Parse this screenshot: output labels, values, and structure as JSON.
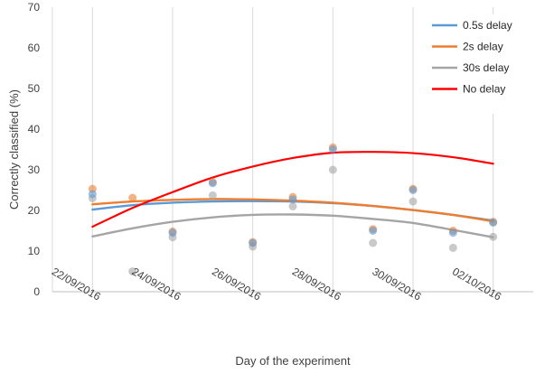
{
  "chart_data": {
    "type": "scatter",
    "xlabel": "Day of the experiment",
    "ylabel": "Correctly classified (%)",
    "ylim": [
      0,
      70
    ],
    "yticks": [
      0,
      10,
      20,
      30,
      40,
      50,
      60,
      70
    ],
    "xlim": [
      "21/09/2016",
      "03/10/2016"
    ],
    "xticks": [
      "22/09/2016",
      "24/09/2016",
      "26/09/2016",
      "28/09/2016",
      "30/09/2016",
      "02/10/2016"
    ],
    "grid": "vertical",
    "legend_position": "top-right",
    "x": [
      "22/09/2016",
      "23/09/2016",
      "24/09/2016",
      "25/09/2016",
      "26/09/2016",
      "27/09/2016",
      "28/09/2016",
      "29/09/2016",
      "30/09/2016",
      "01/10/2016",
      "02/10/2016"
    ],
    "series": [
      {
        "name": "0.5s delay",
        "color": "#5B9BD5",
        "values": [
          24.0,
          null,
          14.5,
          26.7,
          12.0,
          22.7,
          35.0,
          15.0,
          25.0,
          14.5,
          17.0
        ]
      },
      {
        "name": "2s delay",
        "color": "#ED7D31",
        "values": [
          25.3,
          23.1,
          14.8,
          27.0,
          12.2,
          23.3,
          35.5,
          15.4,
          25.3,
          15.0,
          17.2
        ]
      },
      {
        "name": "30s delay",
        "color": "#A5A5A5",
        "values": [
          23.0,
          5.0,
          13.4,
          23.7,
          11.1,
          21.0,
          30.0,
          12.0,
          22.2,
          10.8,
          13.5
        ]
      },
      {
        "name": "No delay",
        "color": "#FF0000",
        "values": []
      }
    ],
    "trendlines": [
      {
        "name": "0.5s delay",
        "color": "#5B9BD5",
        "values": [
          20.2,
          21.3,
          21.9,
          22.2,
          22.3,
          22.2,
          21.8,
          21.1,
          20.1,
          18.9,
          17.5
        ]
      },
      {
        "name": "2s delay",
        "color": "#ED7D31",
        "values": [
          21.5,
          22.2,
          22.6,
          22.8,
          22.7,
          22.4,
          21.9,
          21.1,
          20.1,
          18.9,
          17.3
        ]
      },
      {
        "name": "30s delay",
        "color": "#A5A5A5",
        "values": [
          13.6,
          15.6,
          17.2,
          18.3,
          18.9,
          19.0,
          18.7,
          17.9,
          16.9,
          15.2,
          13.4
        ]
      },
      {
        "name": "No delay",
        "color": "#FF0000",
        "values": [
          16.0,
          20.6,
          24.5,
          28.1,
          30.8,
          32.9,
          34.2,
          34.4,
          34.1,
          33.1,
          31.5
        ]
      }
    ]
  }
}
